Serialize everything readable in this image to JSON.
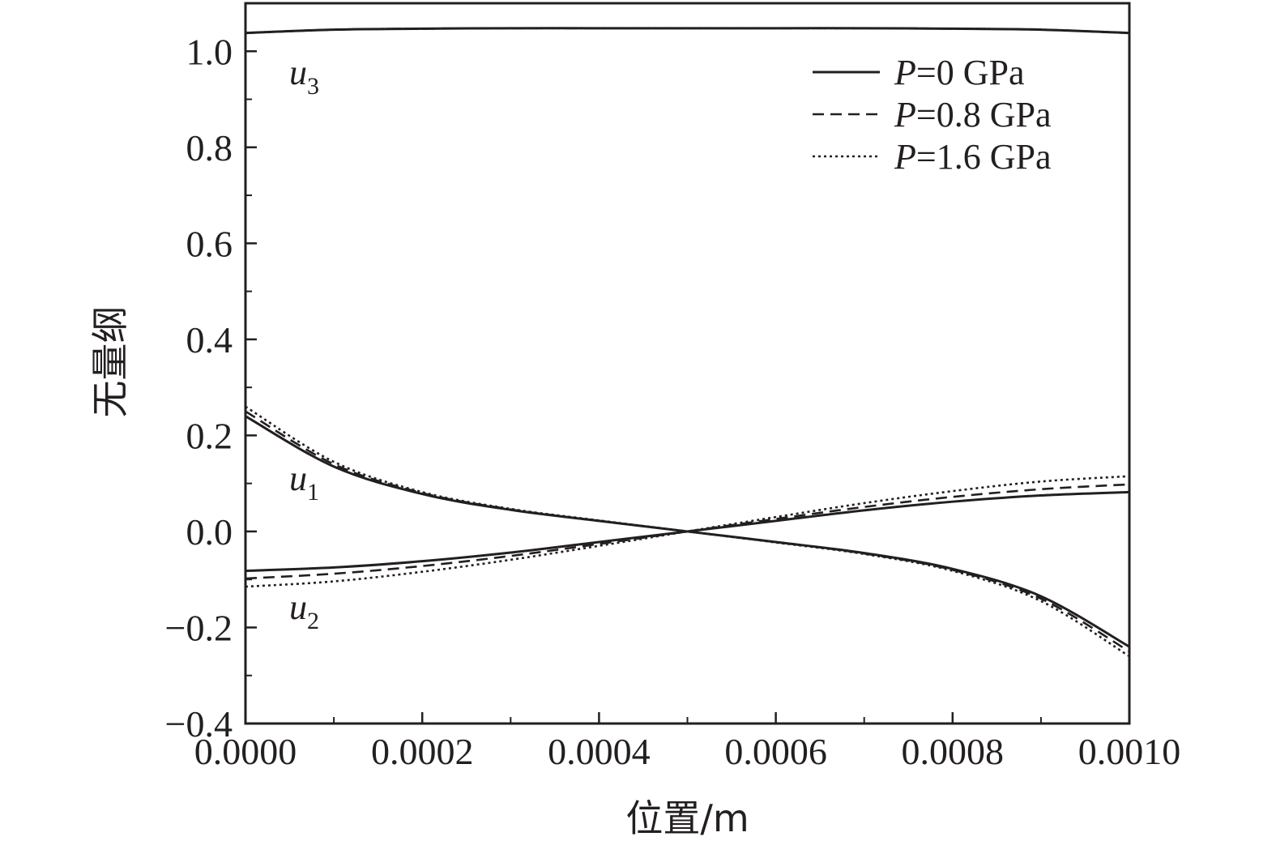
{
  "chart_data": {
    "type": "line",
    "xlabel": "位置/m",
    "ylabel": "无量纲",
    "xlim": [
      0,
      0.001
    ],
    "ylim": [
      -0.4,
      1.1
    ],
    "x_ticks": [
      0,
      0.0002,
      0.0004,
      0.0006,
      0.0008,
      0.001
    ],
    "x_tick_labels": [
      "0.0000",
      "0.0002",
      "0.0004",
      "0.0006",
      "0.0008",
      "0.0010"
    ],
    "y_ticks": [
      -0.4,
      -0.2,
      0.0,
      0.2,
      0.4,
      0.6,
      0.8,
      1.0
    ],
    "y_tick_labels": [
      "−0.4",
      "−0.2",
      "0.0",
      "0.2",
      "0.4",
      "0.6",
      "0.8",
      "1.0"
    ],
    "grid": false,
    "legend_position": "top-right",
    "legend": [
      {
        "label": "P=0 GPa",
        "italic": "P",
        "rest": "=0 GPa",
        "style": "solid"
      },
      {
        "label": "P=0.8 GPa",
        "italic": "P",
        "rest": "=0.8 GPa",
        "style": "dashed"
      },
      {
        "label": "P=1.6 GPa",
        "italic": "P",
        "rest": "=1.6 GPa",
        "style": "dotted"
      }
    ],
    "curve_labels": [
      {
        "text": "u",
        "sub": "3",
        "curve": "u3"
      },
      {
        "text": "u",
        "sub": "1",
        "curve": "u1"
      },
      {
        "text": "u",
        "sub": "2",
        "curve": "u2"
      }
    ],
    "x": [
      0,
      0.0001,
      0.0002,
      0.0003,
      0.0004,
      0.0005,
      0.0006,
      0.0007,
      0.0008,
      0.0009,
      0.001
    ],
    "series": [
      {
        "curve": "u1",
        "pressure": "P=0 GPa",
        "style": "solid",
        "values": [
          0.24,
          0.135,
          0.078,
          0.045,
          0.022,
          0.0,
          -0.022,
          -0.045,
          -0.078,
          -0.135,
          -0.24
        ]
      },
      {
        "curve": "u1",
        "pressure": "P=0.8 GPa",
        "style": "dashed",
        "values": [
          0.25,
          0.14,
          0.08,
          0.046,
          0.022,
          0.0,
          -0.022,
          -0.046,
          -0.08,
          -0.14,
          -0.25
        ]
      },
      {
        "curve": "u1",
        "pressure": "P=1.6 GPa",
        "style": "dotted",
        "values": [
          0.26,
          0.145,
          0.082,
          0.047,
          0.023,
          0.0,
          -0.023,
          -0.047,
          -0.082,
          -0.145,
          -0.26
        ]
      },
      {
        "curve": "u2",
        "pressure": "P=0 GPa",
        "style": "solid",
        "values": [
          -0.082,
          -0.075,
          -0.062,
          -0.044,
          -0.022,
          0.0,
          0.022,
          0.044,
          0.062,
          0.075,
          0.082
        ]
      },
      {
        "curve": "u2",
        "pressure": "P=0.8 GPa",
        "style": "dashed",
        "values": [
          -0.098,
          -0.088,
          -0.072,
          -0.051,
          -0.026,
          0.0,
          0.026,
          0.051,
          0.072,
          0.088,
          0.098
        ]
      },
      {
        "curve": "u2",
        "pressure": "P=1.6 GPa",
        "style": "dotted",
        "values": [
          -0.115,
          -0.104,
          -0.084,
          -0.059,
          -0.03,
          0.0,
          0.03,
          0.059,
          0.084,
          0.104,
          0.115
        ]
      },
      {
        "curve": "u3",
        "pressure": "P=0 GPa",
        "style": "solid",
        "values": [
          1.038,
          1.045,
          1.047,
          1.048,
          1.048,
          1.048,
          1.048,
          1.048,
          1.047,
          1.045,
          1.038
        ]
      },
      {
        "curve": "u3",
        "pressure": "P=0.8 GPa",
        "style": "dashed",
        "values": [
          1.038,
          1.045,
          1.047,
          1.048,
          1.048,
          1.048,
          1.048,
          1.048,
          1.047,
          1.045,
          1.038
        ]
      },
      {
        "curve": "u3",
        "pressure": "P=1.6 GPa",
        "style": "dotted",
        "values": [
          1.038,
          1.045,
          1.047,
          1.048,
          1.048,
          1.048,
          1.048,
          1.048,
          1.047,
          1.045,
          1.038
        ]
      }
    ],
    "colors": {
      "line": "#231f20",
      "background": "#ffffff"
    }
  }
}
